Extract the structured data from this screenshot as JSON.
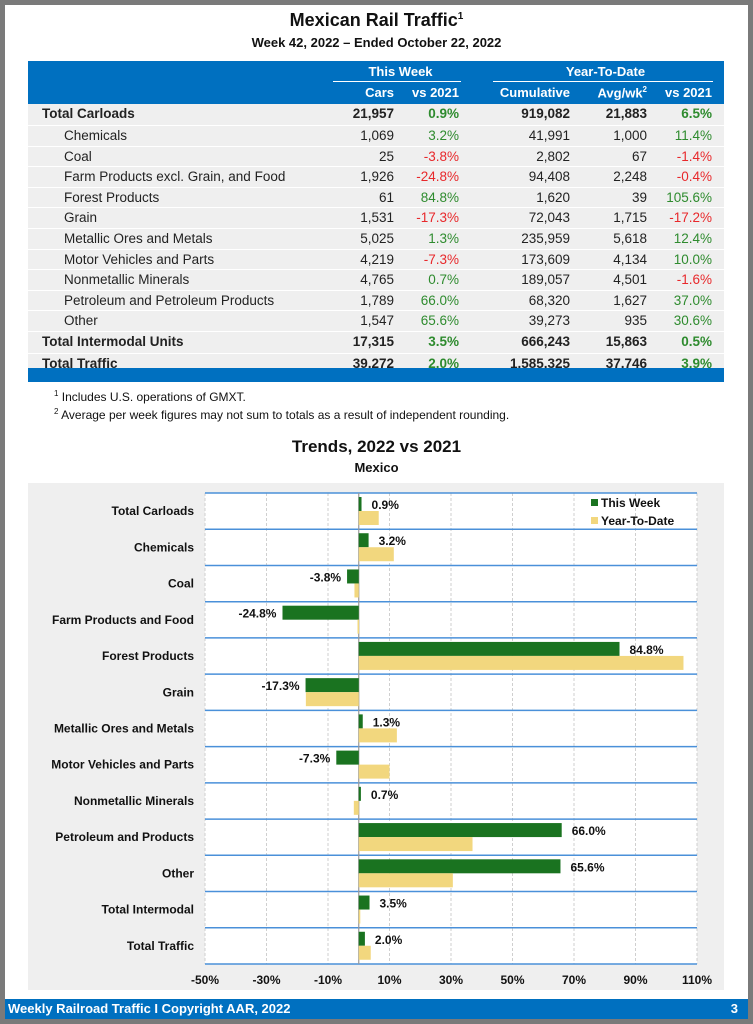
{
  "header": {
    "title": "Mexican Rail Traffic",
    "title_sup": "1",
    "subtitle": "Week 42, 2022 – Ended October 22, 2022"
  },
  "table": {
    "group_headers": [
      "This Week",
      "Year-To-Date"
    ],
    "columns": [
      "Cars",
      "vs 2021",
      "Cumulative",
      "Avg/wk",
      "vs 2021"
    ],
    "avg_sup": "2",
    "rows": [
      {
        "label": "Total Carloads",
        "cars": "21,957",
        "wk_vs": "0.9%",
        "cum": "919,082",
        "avg": "21,883",
        "ytd_vs": "6.5%",
        "bold": true
      },
      {
        "label": "Chemicals",
        "cars": "1,069",
        "wk_vs": "3.2%",
        "cum": "41,991",
        "avg": "1,000",
        "ytd_vs": "11.4%"
      },
      {
        "label": "Coal",
        "cars": "25",
        "wk_vs": "-3.8%",
        "cum": "2,802",
        "avg": "67",
        "ytd_vs": "-1.4%"
      },
      {
        "label": "Farm Products excl. Grain, and Food",
        "cars": "1,926",
        "wk_vs": "-24.8%",
        "cum": "94,408",
        "avg": "2,248",
        "ytd_vs": "-0.4%"
      },
      {
        "label": "Forest Products",
        "cars": "61",
        "wk_vs": "84.8%",
        "cum": "1,620",
        "avg": "39",
        "ytd_vs": "105.6%"
      },
      {
        "label": "Grain",
        "cars": "1,531",
        "wk_vs": "-17.3%",
        "cum": "72,043",
        "avg": "1,715",
        "ytd_vs": "-17.2%"
      },
      {
        "label": "Metallic Ores and Metals",
        "cars": "5,025",
        "wk_vs": "1.3%",
        "cum": "235,959",
        "avg": "5,618",
        "ytd_vs": "12.4%"
      },
      {
        "label": "Motor Vehicles and Parts",
        "cars": "4,219",
        "wk_vs": "-7.3%",
        "cum": "173,609",
        "avg": "4,134",
        "ytd_vs": "10.0%"
      },
      {
        "label": "Nonmetallic Minerals",
        "cars": "4,765",
        "wk_vs": "0.7%",
        "cum": "189,057",
        "avg": "4,501",
        "ytd_vs": "-1.6%"
      },
      {
        "label": "Petroleum and Petroleum Products",
        "cars": "1,789",
        "wk_vs": "66.0%",
        "cum": "68,320",
        "avg": "1,627",
        "ytd_vs": "37.0%"
      },
      {
        "label": "Other",
        "cars": "1,547",
        "wk_vs": "65.6%",
        "cum": "39,273",
        "avg": "935",
        "ytd_vs": "30.6%"
      },
      {
        "label": "Total Intermodal Units",
        "cars": "17,315",
        "wk_vs": "3.5%",
        "cum": "666,243",
        "avg": "15,863",
        "ytd_vs": "0.5%",
        "bold": true
      },
      {
        "label": "Total Traffic",
        "cars": "39,272",
        "wk_vs": "2.0%",
        "cum": "1,585,325",
        "avg": "37,746",
        "ytd_vs": "3.9%",
        "bold": true
      }
    ]
  },
  "notes": [
    {
      "sup": "1",
      "text": "Includes U.S. operations of GMXT."
    },
    {
      "sup": "2",
      "text": "Average per week figures may not sum to totals as a result of independent rounding."
    }
  ],
  "colors": {
    "header_blue": "#0070c0",
    "positive": "#2e8b2e",
    "negative": "#e8282b",
    "this_week_bar": "#1a7320",
    "ytd_bar": "#f2d77e"
  },
  "chart_data": {
    "type": "bar",
    "orientation": "horizontal",
    "title": "Trends, 2022 vs 2021",
    "subtitle": "Mexico",
    "categories": [
      "Total Carloads",
      "Chemicals",
      "Coal",
      "Farm Products and Food",
      "Forest Products",
      "Grain",
      "Metallic Ores and Metals",
      "Motor Vehicles and Parts",
      "Nonmetallic Minerals",
      "Petroleum and Products",
      "Other",
      "Total Intermodal",
      "Total Traffic"
    ],
    "series": [
      {
        "name": "This Week",
        "values": [
          0.9,
          3.2,
          -3.8,
          -24.8,
          84.8,
          -17.3,
          1.3,
          -7.3,
          0.7,
          66.0,
          65.6,
          3.5,
          2.0
        ],
        "labels": [
          "0.9%",
          "3.2%",
          "-3.8%",
          "-24.8%",
          "84.8%",
          "-17.3%",
          "1.3%",
          "-7.3%",
          "0.7%",
          "66.0%",
          "65.6%",
          "3.5%",
          "2.0%"
        ]
      },
      {
        "name": "Year-To-Date",
        "values": [
          6.5,
          11.4,
          -1.4,
          -0.4,
          105.6,
          -17.2,
          12.4,
          10.0,
          -1.6,
          37.0,
          30.6,
          0.5,
          3.9
        ]
      }
    ],
    "xlim": [
      -50,
      110
    ],
    "xticks": [
      -50,
      -30,
      -10,
      10,
      30,
      50,
      70,
      90,
      110
    ],
    "xtick_labels": [
      "-50%",
      "-30%",
      "-10%",
      "10%",
      "30%",
      "50%",
      "70%",
      "90%",
      "110%"
    ],
    "xlabel": "",
    "ylabel": "",
    "grid": true,
    "legend": "top-right"
  },
  "footer": {
    "text": "Weekly Railroad Traffic I Copyright AAR, 2022",
    "page": "3"
  }
}
